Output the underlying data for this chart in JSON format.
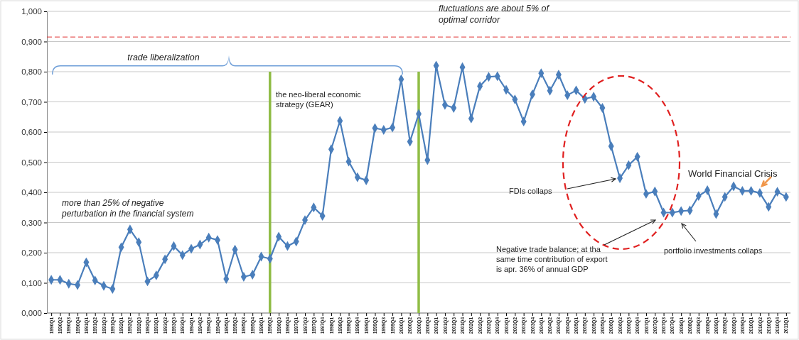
{
  "chart_data": {
    "type": "line",
    "categories": [
      "1990Q1",
      "1990Q2",
      "1990Q3",
      "1990Q4",
      "1991Q1",
      "1991Q2",
      "1991Q3",
      "1991Q4",
      "1992Q1",
      "1992Q2",
      "1992Q3",
      "1992Q4",
      "1993Q1",
      "1993Q2",
      "1993Q3",
      "1993Q4",
      "1994Q1",
      "1994Q2",
      "1994Q3",
      "1994Q4",
      "1995Q1",
      "1995Q2",
      "1995Q3",
      "1995Q4",
      "1996Q1",
      "1996Q2",
      "1996Q3",
      "1996Q4",
      "1997Q1",
      "1997Q2",
      "1997Q3",
      "1997Q4",
      "1998Q1",
      "1998Q2",
      "1998Q3",
      "1998Q4",
      "1999Q1",
      "1999Q2",
      "1999Q3",
      "1999Q4",
      "2000Q1",
      "2000Q2",
      "2000Q3",
      "2000Q4",
      "2001Q1",
      "2001Q2",
      "2001Q3",
      "2001Q4",
      "2002Q1",
      "2002Q2",
      "2002Q3",
      "2002Q4",
      "2003Q1",
      "2003Q2",
      "2003Q3",
      "2003Q4",
      "2004Q1",
      "2004Q2",
      "2004Q3",
      "2004Q4",
      "2005Q1",
      "2005Q2",
      "2005Q3",
      "2005Q4",
      "2006Q1",
      "2006Q2",
      "2006Q3",
      "2006Q4",
      "2007Q1",
      "2007Q2",
      "2007Q3",
      "2007Q4",
      "2008Q1",
      "2008Q2",
      "2008Q3",
      "2008Q4",
      "2009Q1",
      "2009Q2",
      "2009Q3",
      "2009Q4",
      "2010Q1",
      "2010Q2",
      "2010Q3",
      "2010Q4",
      "2011Q1"
    ],
    "series": [
      {
        "color": "#4a7ebb",
        "values": [
          0.11,
          0.11,
          0.097,
          0.093,
          0.168,
          0.108,
          0.09,
          0.08,
          0.218,
          0.277,
          0.235,
          0.105,
          0.125,
          0.178,
          0.222,
          0.192,
          0.213,
          0.227,
          0.25,
          0.242,
          0.113,
          0.21,
          0.12,
          0.127,
          0.187,
          0.18,
          0.253,
          0.222,
          0.237,
          0.308,
          0.35,
          0.322,
          0.543,
          0.637,
          0.502,
          0.45,
          0.44,
          0.613,
          0.607,
          0.615,
          0.775,
          0.568,
          0.66,
          0.507,
          0.82,
          0.69,
          0.68,
          0.815,
          0.645,
          0.752,
          0.783,
          0.785,
          0.74,
          0.708,
          0.635,
          0.725,
          0.795,
          0.737,
          0.79,
          0.722,
          0.738,
          0.71,
          0.717,
          0.68,
          0.553,
          0.447,
          0.49,
          0.518,
          0.395,
          0.403,
          0.333,
          0.333,
          0.338,
          0.34,
          0.388,
          0.407,
          0.328,
          0.385,
          0.42,
          0.405,
          0.405,
          0.398,
          0.352,
          0.402,
          0.385
        ]
      }
    ],
    "ylim": [
      0,
      1
    ],
    "yticks": [
      {
        "value": 0,
        "label": "0,000"
      },
      {
        "value": 0.1,
        "label": "0,100"
      },
      {
        "value": 0.2,
        "label": "0,200"
      },
      {
        "value": 0.3,
        "label": "0,300"
      },
      {
        "value": 0.4,
        "label": "0,400"
      },
      {
        "value": 0.5,
        "label": "0,500"
      },
      {
        "value": 0.6,
        "label": "0,600"
      },
      {
        "value": 0.7,
        "label": "0,700"
      },
      {
        "value": 0.8,
        "label": "0,800"
      },
      {
        "value": 0.9,
        "label": "0,900"
      },
      {
        "value": 1,
        "label": "1,000"
      }
    ],
    "grid": "y",
    "marker": "diamond",
    "line_style": "solid",
    "ref_lines": [
      {
        "axis": "y",
        "value": 0.915,
        "color": "#e03030",
        "line_style": "dashed"
      },
      {
        "axis": "x",
        "value": "1996Q2",
        "color": "#8fbc45",
        "line_style": "solid"
      },
      {
        "axis": "x",
        "value": "2000Q3",
        "color": "#8fbc45",
        "line_style": "solid"
      }
    ],
    "annotations": [
      "trade liberalization",
      "fluctuations are about 5% of optimal corridor",
      "the neo-liberal economic strategy (GEAR)",
      "more than 25% of negative perturbation in the financial system",
      "FDIs collaps",
      "Negative trade balance; at tha same time  contribution of export is apr. 36% of annual GDP",
      "portfolio investments collaps",
      "World Financial Crisis"
    ]
  }
}
